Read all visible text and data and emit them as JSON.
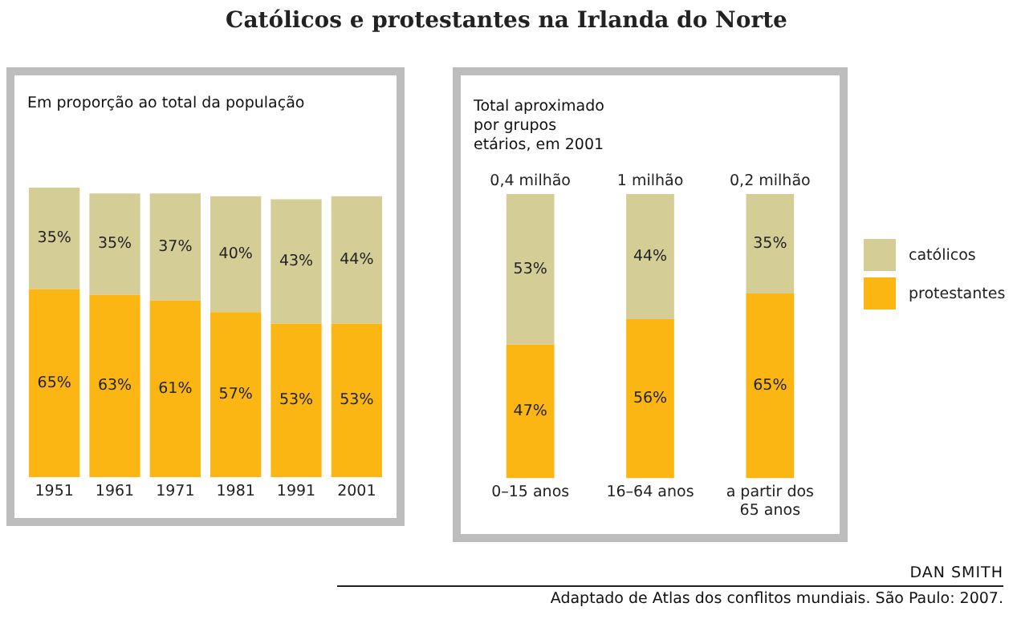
{
  "chart_data": [
    {
      "type": "bar",
      "title": "Católicos e protestantes na Irlanda do Norte",
      "subtitle": "Em proporção ao total da população",
      "categories": [
        "1951",
        "1961",
        "1971",
        "1981",
        "1991",
        "2001"
      ],
      "stacked": true,
      "tick_labels": "x",
      "grid": false,
      "legend": false,
      "series": [
        {
          "color": "#fbb614",
          "values": [
            65,
            63,
            61,
            57,
            53,
            53
          ],
          "value_labels": [
            "65%",
            "63%",
            "61%",
            "57%",
            "53%",
            "53%"
          ]
        },
        {
          "color": "#d4cd96",
          "values": [
            35,
            35,
            37,
            40,
            43,
            44
          ],
          "value_labels": [
            "35%",
            "35%",
            "37%",
            "40%",
            "43%",
            "44%"
          ]
        }
      ]
    },
    {
      "type": "bar",
      "subtitle": "Total aproximado por grupos etários, em 2001",
      "categories": [
        "0–15 anos",
        "16–64 anos",
        "a partir dos 65 anos"
      ],
      "stacked": true,
      "tick_labels": "x",
      "grid": false,
      "legend": "right",
      "series": [
        {
          "name": "protestantes",
          "color": "#fbb614",
          "values": [
            47,
            56,
            65
          ],
          "value_labels": [
            "47%",
            "56%",
            "65%"
          ]
        },
        {
          "name": "católicos",
          "color": "#d4cd96",
          "values": [
            53,
            44,
            35
          ],
          "value_labels": [
            "53%",
            "44%",
            "35%"
          ]
        }
      ],
      "annotations": [
        {
          "text": "0,4 milhão",
          "x": "0–15 anos",
          "y": 100
        },
        {
          "text": "1 milhão",
          "x": "16–64 anos",
          "y": 100
        },
        {
          "text": "0,2 milhão",
          "x": "a partir dos 65 anos",
          "y": 100
        },
        "DAN SMITH",
        "Adaptado de Atlas dos conflitos mundiais. São Paulo: 2007."
      ]
    }
  ]
}
